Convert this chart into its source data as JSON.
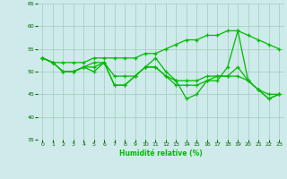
{
  "xlabel": "Humidité relative (%)",
  "bg_color": "#ceeaea",
  "grid_color": "#a0ccbb",
  "line_color": "#00bb00",
  "xlim": [
    -0.5,
    23.5
  ],
  "ylim": [
    35,
    65
  ],
  "yticks": [
    35,
    40,
    45,
    50,
    55,
    60,
    65
  ],
  "xticks": [
    0,
    1,
    2,
    3,
    4,
    5,
    6,
    7,
    8,
    9,
    10,
    11,
    12,
    13,
    14,
    15,
    16,
    17,
    18,
    19,
    20,
    21,
    22,
    23
  ],
  "series": [
    [
      53,
      52,
      50,
      50,
      51,
      50,
      52,
      47,
      47,
      49,
      51,
      53,
      50,
      48,
      44,
      45,
      48,
      48,
      51,
      59,
      48,
      46,
      44,
      45
    ],
    [
      53,
      52,
      50,
      50,
      51,
      51,
      52,
      47,
      47,
      49,
      51,
      51,
      49,
      47,
      47,
      47,
      48,
      49,
      49,
      51,
      48,
      46,
      44,
      45
    ],
    [
      53,
      52,
      50,
      50,
      51,
      52,
      52,
      49,
      49,
      49,
      51,
      51,
      49,
      48,
      48,
      48,
      49,
      49,
      49,
      49,
      48,
      46,
      45,
      45
    ],
    [
      53,
      52,
      52,
      52,
      52,
      53,
      53,
      53,
      53,
      53,
      54,
      54,
      55,
      56,
      57,
      57,
      58,
      58,
      59,
      59,
      58,
      57,
      56,
      55
    ]
  ]
}
